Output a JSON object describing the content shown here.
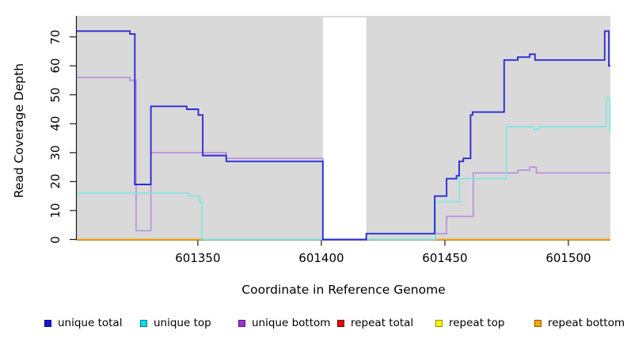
{
  "chart_data": {
    "type": "line",
    "step": true,
    "title": "",
    "xlabel": "Coordinate in Reference Genome",
    "ylabel": "Read Coverage Depth",
    "x_ticks": [
      601350,
      601400,
      601450,
      601500
    ],
    "y_ticks": [
      0,
      10,
      20,
      30,
      40,
      50,
      60,
      70
    ],
    "xlim": [
      601301,
      601517
    ],
    "ylim": [
      0,
      77
    ],
    "grid": false,
    "plot_background": "#d9d9d9",
    "masked_region": {
      "x1": 601400.6,
      "x2": 601418.2,
      "color": "#ffffff"
    },
    "series": [
      {
        "name": "repeat total",
        "color": "#de0000",
        "points": [
          [
            601301,
            0
          ]
        ]
      },
      {
        "name": "repeat top",
        "color": "#ffff00",
        "points": [
          [
            601301,
            0
          ]
        ]
      },
      {
        "name": "repeat bottom",
        "color": "#ffa500",
        "points": [
          [
            601301,
            0
          ]
        ]
      },
      {
        "name": "unique bottom",
        "color": "#b48ede",
        "points": [
          [
            601301,
            56
          ],
          [
            601322.5,
            55
          ],
          [
            601325,
            3
          ],
          [
            601331,
            30
          ],
          [
            601361.5,
            28
          ],
          [
            601400.6,
            0
          ],
          [
            601418.2,
            2
          ],
          [
            601450.7,
            8
          ],
          [
            601461.5,
            23
          ],
          [
            601479.6,
            24
          ],
          [
            601484.3,
            25
          ],
          [
            601487,
            23
          ]
        ]
      },
      {
        "name": "unique top",
        "color": "#7de6e0",
        "points": [
          [
            601301,
            16
          ],
          [
            601346.5,
            15
          ],
          [
            601350.8,
            13
          ],
          [
            601351.7,
            0
          ],
          [
            601446.2,
            13
          ],
          [
            601455.9,
            21
          ],
          [
            601474.9,
            39
          ],
          [
            601486,
            38
          ],
          [
            601488,
            39
          ],
          [
            601515.3,
            49
          ],
          [
            601516.8,
            37
          ]
        ]
      },
      {
        "name": "unique total",
        "color": "#2d2dd4",
        "points": [
          [
            601301,
            72
          ],
          [
            601322.5,
            71
          ],
          [
            601324.5,
            19
          ],
          [
            601331,
            46
          ],
          [
            601345.5,
            45
          ],
          [
            601350.2,
            43
          ],
          [
            601352,
            29
          ],
          [
            601361.5,
            27
          ],
          [
            601400.6,
            0
          ],
          [
            601418.2,
            2
          ],
          [
            601445.9,
            15
          ],
          [
            601450.7,
            21
          ],
          [
            601454.7,
            22
          ],
          [
            601455.8,
            27
          ],
          [
            601457.5,
            28
          ],
          [
            601460.4,
            43
          ],
          [
            601461.2,
            44
          ],
          [
            601474,
            62
          ],
          [
            601479.5,
            63
          ],
          [
            601484.3,
            64
          ],
          [
            601486.5,
            62
          ],
          [
            601514.7,
            72
          ],
          [
            601516.4,
            60
          ]
        ]
      }
    ],
    "zero_line_overlays": [
      {
        "x1": 601352,
        "x2": 601400.6,
        "color": "#a8d8a2"
      },
      {
        "x1": 601418.2,
        "x2": 601446,
        "color": "#a8d8a2"
      }
    ],
    "legend_position": "bottom"
  },
  "legend": {
    "items": [
      {
        "label": "unique total",
        "color": "#1515e0"
      },
      {
        "label": "unique top",
        "color": "#00e0ee"
      },
      {
        "label": "unique bottom",
        "color": "#9a30d6"
      },
      {
        "label": "repeat total",
        "color": "#e80000"
      },
      {
        "label": "repeat top",
        "color": "#ffff00"
      },
      {
        "label": "repeat bottom",
        "color": "#ffa500"
      }
    ]
  },
  "axis": {
    "x_title": "Coordinate in Reference Genome",
    "y_title": "Read Coverage Depth"
  }
}
